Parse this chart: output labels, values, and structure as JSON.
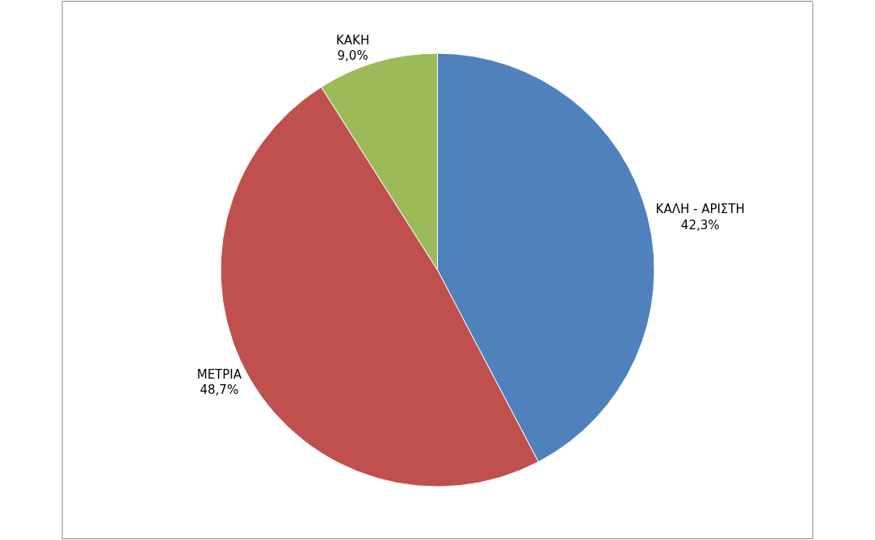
{
  "chart_data": {
    "type": "pie",
    "categories": [
      "ΚΑΛΗ - ΑΡΙΣΤΗ",
      "ΜΕΤΡΙΑ",
      "ΚΑΚΗ"
    ],
    "values": [
      42.3,
      48.7,
      9.0
    ],
    "value_labels": [
      "42,3%",
      "48,7%",
      "9,0%"
    ],
    "colors": [
      "#4f81bd",
      "#c0504d",
      "#9bbb59"
    ],
    "legend": false
  }
}
